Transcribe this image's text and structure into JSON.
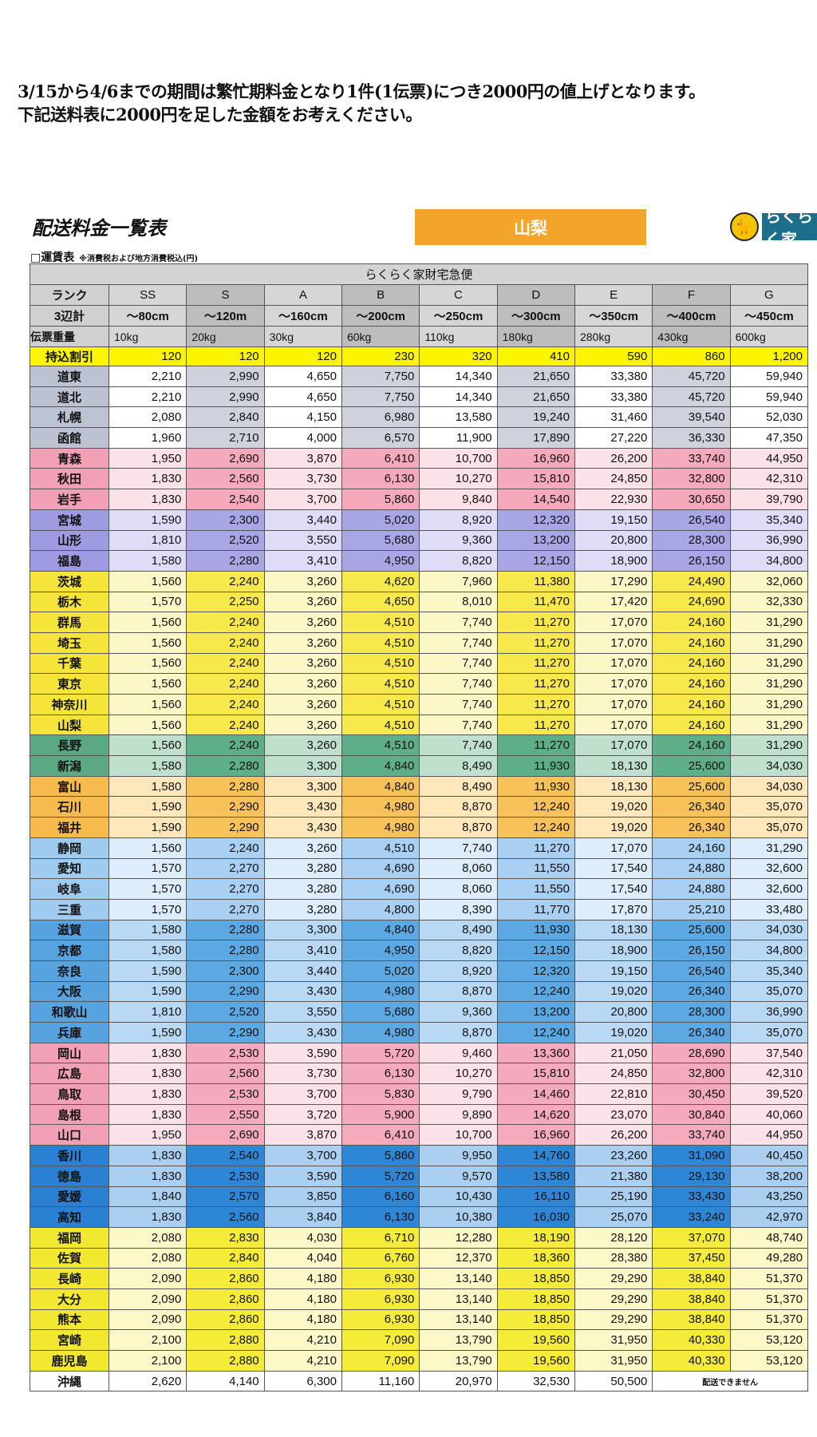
{
  "notice": {
    "line1": "3/15から4/6までの期間は繁忙期料金となり1件(1伝票)につき2000円の値上げとなります。",
    "line2": "下記送料表に2000円を足した金額をお考えください。"
  },
  "title": "配送料金一覧表",
  "prefecture": "山梨",
  "logo_text": "らくらく家",
  "subtitle": "□運賃表",
  "subtitle_note": "※消費税および地方消費税込(円)",
  "table": {
    "service_name": "らくらく家財宅急便",
    "rank_label": "ランク",
    "ranks": [
      "SS",
      "S",
      "A",
      "B",
      "C",
      "D",
      "E",
      "F",
      "G"
    ],
    "size_label": "3辺計",
    "sizes": [
      "～80cm",
      "～120m",
      "～160cm",
      "～200cm",
      "～250cm",
      "～300cm",
      "～350cm",
      "～400cm",
      "～450cm"
    ],
    "weight_label": "伝票重量",
    "weights": [
      "10kg",
      "20kg",
      "30kg",
      "60kg",
      "110kg",
      "180kg",
      "280kg",
      "430kg",
      "600kg"
    ],
    "discount_label": "持込割引",
    "discounts": [
      "120",
      "120",
      "120",
      "230",
      "320",
      "410",
      "590",
      "860",
      "1,200"
    ],
    "not_available": "配送できません",
    "groups": {
      "hokkaido": {
        "strong": "#cfd2dc",
        "light": "#ffffff",
        "label": "#bcc2d2"
      },
      "tohoku_pink": {
        "strong": "#f4a9bd",
        "light": "#fbe2e9",
        "label": "#f1a0b5"
      },
      "tohoku_purple": {
        "strong": "#a9a6e6",
        "light": "#dedcf6",
        "label": "#9f9be2"
      },
      "kanto": {
        "strong": "#f7e84c",
        "light": "#fcf7c6",
        "label": "#f5e43a"
      },
      "shinetsu": {
        "strong": "#5fae8a",
        "light": "#bfe0cc",
        "label": "#5aa884"
      },
      "hokuriku": {
        "strong": "#f8c25a",
        "light": "#fde7bb",
        "label": "#f6bb4c"
      },
      "tokai": {
        "strong": "#a9d0f2",
        "light": "#deedfb",
        "label": "#a0cbf0"
      },
      "kinki": {
        "strong": "#5ca8e2",
        "light": "#b8d8f3",
        "label": "#57a3df"
      },
      "chugoku": {
        "strong": "#f4a9bd",
        "light": "#fbe2e9",
        "label": "#f1a0b5"
      },
      "shikoku": {
        "strong": "#2d86d6",
        "light": "#abcff0",
        "label": "#2a80d2"
      },
      "kyushu": {
        "strong": "#f5ec3a",
        "light": "#fcf8c8",
        "label": "#f3e830"
      },
      "okinawa": {
        "strong": "#ffffff",
        "light": "#ffffff",
        "label": "#ffffff"
      }
    },
    "rows": [
      {
        "name": "道東",
        "group": "hokkaido",
        "values": [
          "2,210",
          "2,990",
          "4,650",
          "7,750",
          "14,340",
          "21,650",
          "33,380",
          "45,720",
          "59,940"
        ]
      },
      {
        "name": "道北",
        "group": "hokkaido",
        "values": [
          "2,210",
          "2,990",
          "4,650",
          "7,750",
          "14,340",
          "21,650",
          "33,380",
          "45,720",
          "59,940"
        ]
      },
      {
        "name": "札幌",
        "group": "hokkaido",
        "values": [
          "2,080",
          "2,840",
          "4,150",
          "6,980",
          "13,580",
          "19,240",
          "31,460",
          "39,540",
          "52,030"
        ]
      },
      {
        "name": "函館",
        "group": "hokkaido",
        "values": [
          "1,960",
          "2,710",
          "4,000",
          "6,570",
          "11,900",
          "17,890",
          "27,220",
          "36,330",
          "47,350"
        ]
      },
      {
        "name": "青森",
        "group": "tohoku_pink",
        "values": [
          "1,950",
          "2,690",
          "3,870",
          "6,410",
          "10,700",
          "16,960",
          "26,200",
          "33,740",
          "44,950"
        ]
      },
      {
        "name": "秋田",
        "group": "tohoku_pink",
        "values": [
          "1,830",
          "2,560",
          "3,730",
          "6,130",
          "10,270",
          "15,810",
          "24,850",
          "32,800",
          "42,310"
        ]
      },
      {
        "name": "岩手",
        "group": "tohoku_pink",
        "values": [
          "1,830",
          "2,540",
          "3,700",
          "5,860",
          "9,840",
          "14,540",
          "22,930",
          "30,650",
          "39,790"
        ]
      },
      {
        "name": "宮城",
        "group": "tohoku_purple",
        "values": [
          "1,590",
          "2,300",
          "3,440",
          "5,020",
          "8,920",
          "12,320",
          "19,150",
          "26,540",
          "35,340"
        ]
      },
      {
        "name": "山形",
        "group": "tohoku_purple",
        "values": [
          "1,810",
          "2,520",
          "3,550",
          "5,680",
          "9,360",
          "13,200",
          "20,800",
          "28,300",
          "36,990"
        ]
      },
      {
        "name": "福島",
        "group": "tohoku_purple",
        "values": [
          "1,580",
          "2,280",
          "3,410",
          "4,950",
          "8,820",
          "12,150",
          "18,900",
          "26,150",
          "34,800"
        ]
      },
      {
        "name": "茨城",
        "group": "kanto",
        "values": [
          "1,560",
          "2,240",
          "3,260",
          "4,620",
          "7,960",
          "11,380",
          "17,290",
          "24,490",
          "32,060"
        ]
      },
      {
        "name": "栃木",
        "group": "kanto",
        "values": [
          "1,570",
          "2,250",
          "3,260",
          "4,650",
          "8,010",
          "11,470",
          "17,420",
          "24,690",
          "32,330"
        ]
      },
      {
        "name": "群馬",
        "group": "kanto",
        "values": [
          "1,560",
          "2,240",
          "3,260",
          "4,510",
          "7,740",
          "11,270",
          "17,070",
          "24,160",
          "31,290"
        ]
      },
      {
        "name": "埼玉",
        "group": "kanto",
        "values": [
          "1,560",
          "2,240",
          "3,260",
          "4,510",
          "7,740",
          "11,270",
          "17,070",
          "24,160",
          "31,290"
        ]
      },
      {
        "name": "千葉",
        "group": "kanto",
        "values": [
          "1,560",
          "2,240",
          "3,260",
          "4,510",
          "7,740",
          "11,270",
          "17,070",
          "24,160",
          "31,290"
        ]
      },
      {
        "name": "東京",
        "group": "kanto",
        "values": [
          "1,560",
          "2,240",
          "3,260",
          "4,510",
          "7,740",
          "11,270",
          "17,070",
          "24,160",
          "31,290"
        ]
      },
      {
        "name": "神奈川",
        "group": "kanto",
        "values": [
          "1,560",
          "2,240",
          "3,260",
          "4,510",
          "7,740",
          "11,270",
          "17,070",
          "24,160",
          "31,290"
        ]
      },
      {
        "name": "山梨",
        "group": "kanto",
        "values": [
          "1,560",
          "2,240",
          "3,260",
          "4,510",
          "7,740",
          "11,270",
          "17,070",
          "24,160",
          "31,290"
        ]
      },
      {
        "name": "長野",
        "group": "shinetsu",
        "values": [
          "1,560",
          "2,240",
          "3,260",
          "4,510",
          "7,740",
          "11,270",
          "17,070",
          "24,160",
          "31,290"
        ]
      },
      {
        "name": "新潟",
        "group": "shinetsu",
        "values": [
          "1,580",
          "2,280",
          "3,300",
          "4,840",
          "8,490",
          "11,930",
          "18,130",
          "25,600",
          "34,030"
        ]
      },
      {
        "name": "富山",
        "group": "hokuriku",
        "values": [
          "1,580",
          "2,280",
          "3,300",
          "4,840",
          "8,490",
          "11,930",
          "18,130",
          "25,600",
          "34,030"
        ]
      },
      {
        "name": "石川",
        "group": "hokuriku",
        "values": [
          "1,590",
          "2,290",
          "3,430",
          "4,980",
          "8,870",
          "12,240",
          "19,020",
          "26,340",
          "35,070"
        ]
      },
      {
        "name": "福井",
        "group": "hokuriku",
        "values": [
          "1,590",
          "2,290",
          "3,430",
          "4,980",
          "8,870",
          "12,240",
          "19,020",
          "26,340",
          "35,070"
        ]
      },
      {
        "name": "静岡",
        "group": "tokai",
        "values": [
          "1,560",
          "2,240",
          "3,260",
          "4,510",
          "7,740",
          "11,270",
          "17,070",
          "24,160",
          "31,290"
        ]
      },
      {
        "name": "愛知",
        "group": "tokai",
        "values": [
          "1,570",
          "2,270",
          "3,280",
          "4,690",
          "8,060",
          "11,550",
          "17,540",
          "24,880",
          "32,600"
        ]
      },
      {
        "name": "岐阜",
        "group": "tokai",
        "values": [
          "1,570",
          "2,270",
          "3,280",
          "4,690",
          "8,060",
          "11,550",
          "17,540",
          "24,880",
          "32,600"
        ]
      },
      {
        "name": "三重",
        "group": "tokai",
        "values": [
          "1,570",
          "2,270",
          "3,280",
          "4,800",
          "8,390",
          "11,770",
          "17,870",
          "25,210",
          "33,480"
        ]
      },
      {
        "name": "滋賀",
        "group": "kinki",
        "values": [
          "1,580",
          "2,280",
          "3,300",
          "4,840",
          "8,490",
          "11,930",
          "18,130",
          "25,600",
          "34,030"
        ]
      },
      {
        "name": "京都",
        "group": "kinki",
        "values": [
          "1,580",
          "2,280",
          "3,410",
          "4,950",
          "8,820",
          "12,150",
          "18,900",
          "26,150",
          "34,800"
        ]
      },
      {
        "name": "奈良",
        "group": "kinki",
        "values": [
          "1,590",
          "2,300",
          "3,440",
          "5,020",
          "8,920",
          "12,320",
          "19,150",
          "26,540",
          "35,340"
        ]
      },
      {
        "name": "大阪",
        "group": "kinki",
        "values": [
          "1,590",
          "2,290",
          "3,430",
          "4,980",
          "8,870",
          "12,240",
          "19,020",
          "26,340",
          "35,070"
        ]
      },
      {
        "name": "和歌山",
        "group": "kinki",
        "values": [
          "1,810",
          "2,520",
          "3,550",
          "5,680",
          "9,360",
          "13,200",
          "20,800",
          "28,300",
          "36,990"
        ]
      },
      {
        "name": "兵庫",
        "group": "kinki",
        "values": [
          "1,590",
          "2,290",
          "3,430",
          "4,980",
          "8,870",
          "12,240",
          "19,020",
          "26,340",
          "35,070"
        ]
      },
      {
        "name": "岡山",
        "group": "chugoku",
        "values": [
          "1,830",
          "2,530",
          "3,590",
          "5,720",
          "9,460",
          "13,360",
          "21,050",
          "28,690",
          "37,540"
        ]
      },
      {
        "name": "広島",
        "group": "chugoku",
        "values": [
          "1,830",
          "2,560",
          "3,730",
          "6,130",
          "10,270",
          "15,810",
          "24,850",
          "32,800",
          "42,310"
        ]
      },
      {
        "name": "鳥取",
        "group": "chugoku",
        "values": [
          "1,830",
          "2,530",
          "3,700",
          "5,830",
          "9,790",
          "14,460",
          "22,810",
          "30,450",
          "39,520"
        ]
      },
      {
        "name": "島根",
        "group": "chugoku",
        "values": [
          "1,830",
          "2,550",
          "3,720",
          "5,900",
          "9,890",
          "14,620",
          "23,070",
          "30,840",
          "40,060"
        ]
      },
      {
        "name": "山口",
        "group": "chugoku",
        "values": [
          "1,950",
          "2,690",
          "3,870",
          "6,410",
          "10,700",
          "16,960",
          "26,200",
          "33,740",
          "44,950"
        ]
      },
      {
        "name": "香川",
        "group": "shikoku",
        "values": [
          "1,830",
          "2,540",
          "3,700",
          "5,860",
          "9,950",
          "14,760",
          "23,260",
          "31,090",
          "40,450"
        ]
      },
      {
        "name": "徳島",
        "group": "shikoku",
        "values": [
          "1,830",
          "2,530",
          "3,590",
          "5,720",
          "9,570",
          "13,580",
          "21,380",
          "29,130",
          "38,200"
        ]
      },
      {
        "name": "愛媛",
        "group": "shikoku",
        "values": [
          "1,840",
          "2,570",
          "3,850",
          "6,160",
          "10,430",
          "16,110",
          "25,190",
          "33,430",
          "43,250"
        ]
      },
      {
        "name": "高知",
        "group": "shikoku",
        "values": [
          "1,830",
          "2,560",
          "3,840",
          "6,130",
          "10,380",
          "16,030",
          "25,070",
          "33,240",
          "42,970"
        ]
      },
      {
        "name": "福岡",
        "group": "kyushu",
        "values": [
          "2,080",
          "2,830",
          "4,030",
          "6,710",
          "12,280",
          "18,190",
          "28,120",
          "37,070",
          "48,740"
        ]
      },
      {
        "name": "佐賀",
        "group": "kyushu",
        "values": [
          "2,080",
          "2,840",
          "4,040",
          "6,760",
          "12,370",
          "18,360",
          "28,380",
          "37,450",
          "49,280"
        ]
      },
      {
        "name": "長崎",
        "group": "kyushu",
        "values": [
          "2,090",
          "2,860",
          "4,180",
          "6,930",
          "13,140",
          "18,850",
          "29,290",
          "38,840",
          "51,370"
        ]
      },
      {
        "name": "大分",
        "group": "kyushu",
        "values": [
          "2,090",
          "2,860",
          "4,180",
          "6,930",
          "13,140",
          "18,850",
          "29,290",
          "38,840",
          "51,370"
        ]
      },
      {
        "name": "熊本",
        "group": "kyushu",
        "values": [
          "2,090",
          "2,860",
          "4,180",
          "6,930",
          "13,140",
          "18,850",
          "29,290",
          "38,840",
          "51,370"
        ]
      },
      {
        "name": "宮崎",
        "group": "kyushu",
        "values": [
          "2,100",
          "2,880",
          "4,210",
          "7,090",
          "13,790",
          "19,560",
          "31,950",
          "40,330",
          "53,120"
        ]
      },
      {
        "name": "鹿児島",
        "group": "kyushu",
        "values": [
          "2,100",
          "2,880",
          "4,210",
          "7,090",
          "13,790",
          "19,560",
          "31,950",
          "40,330",
          "53,120"
        ]
      },
      {
        "name": "沖縄",
        "group": "okinawa",
        "values": [
          "2,620",
          "4,140",
          "6,300",
          "11,160",
          "20,970",
          "32,530",
          "50,500",
          null,
          null
        ]
      }
    ]
  }
}
